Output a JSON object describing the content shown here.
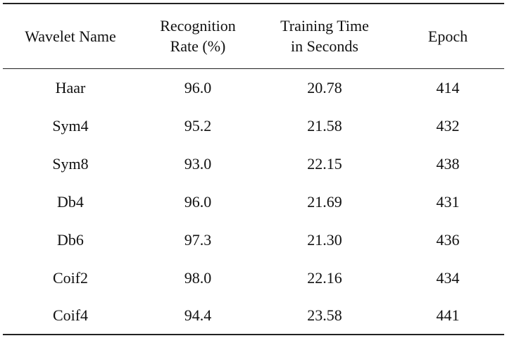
{
  "table": {
    "header": [
      "Wavelet Name",
      "Recognition Rate (%)",
      "Training Time in Seconds",
      "Epoch"
    ],
    "rows": [
      [
        "Haar",
        "96.0",
        "20.78",
        "414"
      ],
      [
        "Sym4",
        "95.2",
        "21.58",
        "432"
      ],
      [
        "Sym8",
        "93.0",
        "22.15",
        "438"
      ],
      [
        "Db4",
        "96.0",
        "21.69",
        "431"
      ],
      [
        "Db6",
        "97.3",
        "21.30",
        "436"
      ],
      [
        "Coif2",
        "98.0",
        "22.16",
        "434"
      ],
      [
        "Coif4",
        "94.4",
        "23.58",
        "441"
      ]
    ]
  }
}
